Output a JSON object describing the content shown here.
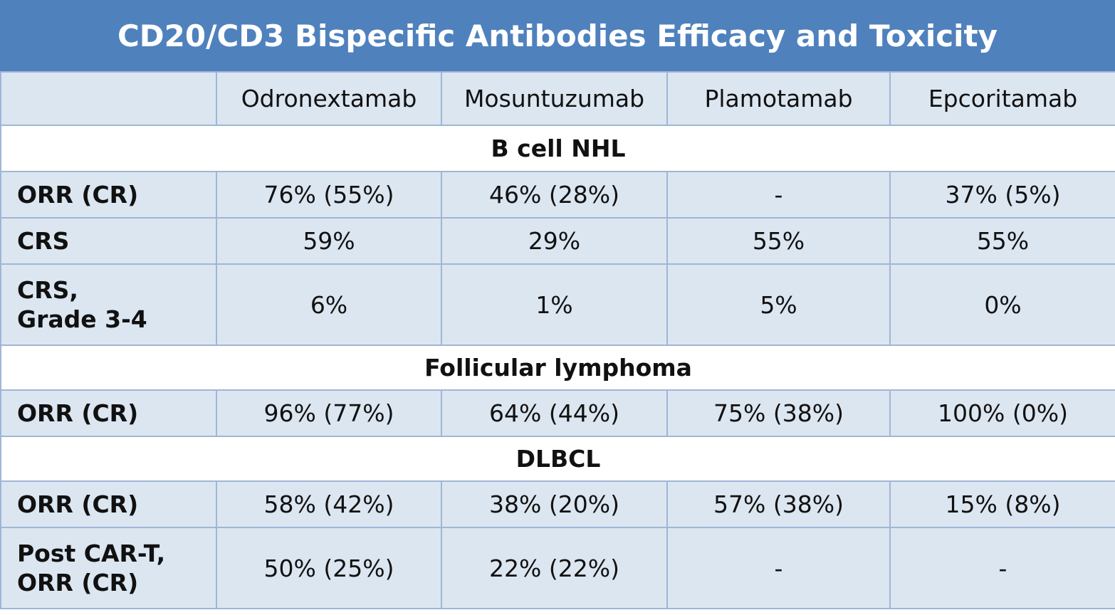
{
  "header": {
    "title": "CD20/CD3 Bispecific Antibodies Efficacy and Toxicity"
  },
  "table": {
    "columns": [
      "Odronextamab",
      "Mosuntuzumab",
      "Plamotamab",
      "Epcoritamab"
    ],
    "sections": [
      {
        "title": "B cell NHL",
        "rows": [
          {
            "label": "ORR (CR)",
            "cells": [
              "76% (55%)",
              "46% (28%)",
              "-",
              "37% (5%)"
            ]
          },
          {
            "label": "CRS",
            "cells": [
              "59%",
              "29%",
              "55%",
              "55%"
            ]
          },
          {
            "label": "CRS,\nGrade 3-4",
            "cells": [
              "6%",
              "1%",
              "5%",
              "0%"
            ]
          }
        ]
      },
      {
        "title": "Follicular lymphoma",
        "rows": [
          {
            "label": "ORR (CR)",
            "cells": [
              "96% (77%)",
              "64% (44%)",
              "75% (38%)",
              "100% (0%)"
            ]
          }
        ]
      },
      {
        "title": "DLBCL",
        "rows": [
          {
            "label": "ORR (CR)",
            "cells": [
              "58% (42%)",
              "38% (20%)",
              "57% (38%)",
              "15% (8%)"
            ]
          },
          {
            "label": "Post CAR-T,\nORR (CR)",
            "cells": [
              "50% (25%)",
              "22% (22%)",
              "-",
              "-"
            ]
          }
        ]
      }
    ]
  }
}
